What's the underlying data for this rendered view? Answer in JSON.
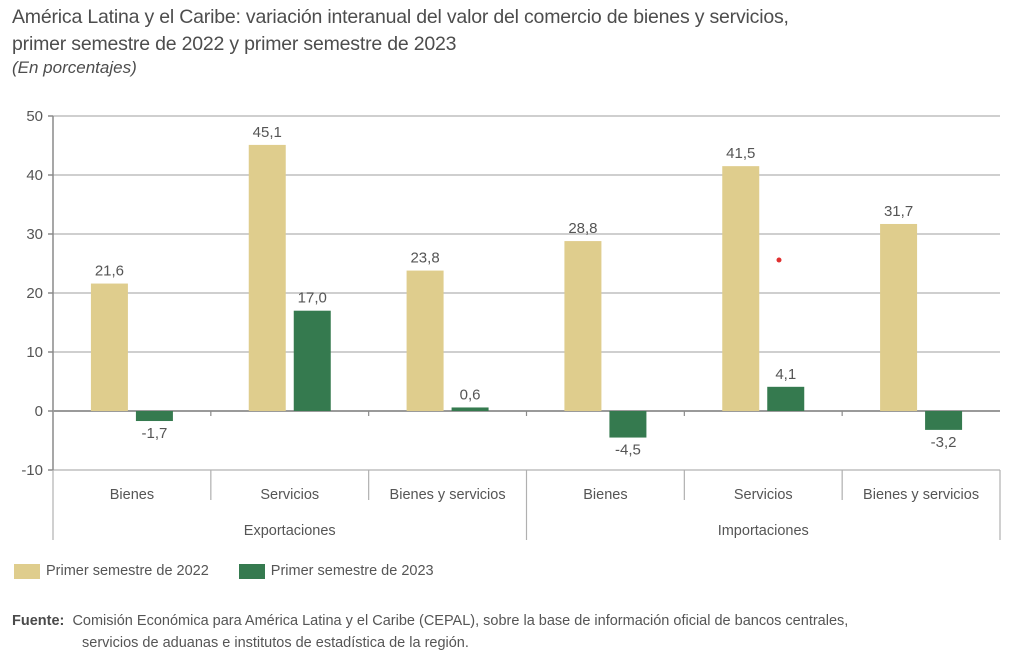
{
  "chart_data": {
    "type": "bar",
    "title": "América Latina y el Caribe: variación interanual del valor del comercio de bienes y servicios, primer semestre de 2022 y primer semestre de 2023",
    "title_lines": [
      "América Latina y el Caribe: variación interanual del valor del comercio de bienes y servicios,",
      "primer semestre de 2022 y primer semestre de 2023"
    ],
    "subtitle": "(En porcentajes)",
    "xlabel": "",
    "ylabel": "",
    "ylim": [
      -10,
      50
    ],
    "yticks": [
      50,
      40,
      30,
      20,
      10,
      0,
      -10
    ],
    "ytick_labels": [
      "50",
      "40",
      "30",
      "20",
      "10",
      "0",
      "-10"
    ],
    "grid": true,
    "categories": [
      "Bienes",
      "Servicios",
      "Bienes y servicios",
      "Bienes",
      "Servicios",
      "Bienes y servicios"
    ],
    "groups": [
      {
        "label": "Exportaciones",
        "span": [
          0,
          2
        ]
      },
      {
        "label": "Importaciones",
        "span": [
          3,
          5
        ]
      }
    ],
    "series": [
      {
        "name": "Primer semestre de 2022",
        "color": "#dfcd8d",
        "values": [
          21.6,
          45.1,
          23.8,
          28.8,
          41.5,
          31.7
        ],
        "labels": [
          "21,6",
          "45,1",
          "23,8",
          "28,8",
          "41,5",
          "31,7"
        ]
      },
      {
        "name": "Primer semestre de 2023",
        "color": "#357a4f",
        "values": [
          -1.7,
          17.0,
          0.6,
          -4.5,
          4.1,
          -3.2
        ],
        "labels": [
          "-1,7",
          "17,0",
          "0,6",
          "-4,5",
          "4,1",
          "-3,2"
        ]
      }
    ],
    "legend_position": "bottom-left"
  },
  "source": {
    "label": "Fuente",
    "line1": "Comisión Económica para América Latina y el Caribe (CEPAL), sobre la base de información oficial de bancos centrales,",
    "line2": "servicios de aduanas e institutos de estadística de la región."
  },
  "colors": {
    "grid": "#cfcfcf",
    "axis": "#8a8a8a",
    "marker": "#e03030"
  }
}
